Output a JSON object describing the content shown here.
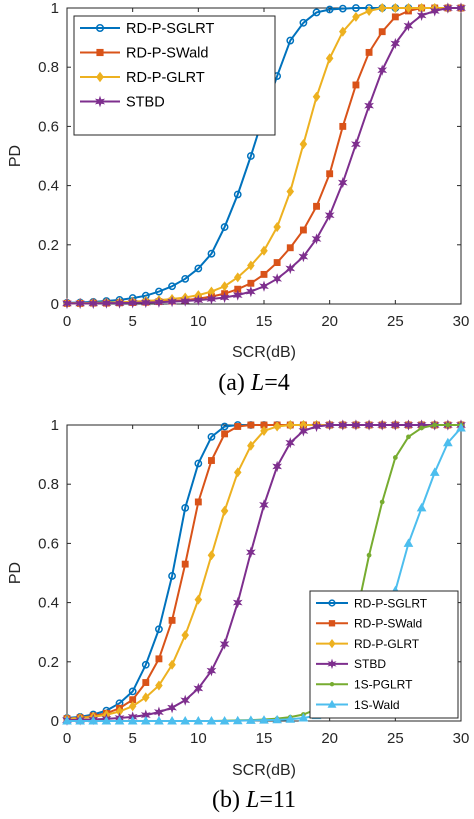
{
  "chart_data": [
    {
      "type": "line",
      "caption": {
        "prefix": "(a) ",
        "var": "L",
        "suffix": "=4"
      },
      "xlabel": "SCR(dB)",
      "ylabel": "PD",
      "xlim": [
        0,
        30
      ],
      "ylim": [
        0,
        1
      ],
      "xticks": [
        "0",
        "5",
        "10",
        "15",
        "20",
        "25",
        "30"
      ],
      "yticks": [
        "0",
        "0.2",
        "0.4",
        "0.6",
        "0.8",
        "1"
      ],
      "grid": false,
      "legend_position": "top-left",
      "x": [
        0,
        1,
        2,
        3,
        4,
        5,
        6,
        7,
        8,
        9,
        10,
        11,
        12,
        13,
        14,
        15,
        16,
        17,
        18,
        19,
        20,
        21,
        22,
        23,
        24,
        25,
        26,
        27,
        28,
        29,
        30
      ],
      "series": [
        {
          "name": "RD-P-SGLRT",
          "color": "#0072BD",
          "marker": "circle",
          "values": [
            0.004,
            0.005,
            0.007,
            0.01,
            0.014,
            0.02,
            0.028,
            0.042,
            0.06,
            0.085,
            0.12,
            0.17,
            0.26,
            0.37,
            0.5,
            0.64,
            0.77,
            0.89,
            0.95,
            0.985,
            0.995,
            0.998,
            1,
            1,
            1,
            1,
            1,
            1,
            1,
            1,
            1
          ]
        },
        {
          "name": "RD-P-SWald",
          "color": "#D95319",
          "marker": "square",
          "values": [
            0.002,
            0.002,
            0.003,
            0.003,
            0.004,
            0.005,
            0.006,
            0.008,
            0.01,
            0.013,
            0.018,
            0.025,
            0.035,
            0.05,
            0.07,
            0.1,
            0.14,
            0.19,
            0.25,
            0.33,
            0.44,
            0.6,
            0.74,
            0.85,
            0.92,
            0.97,
            0.99,
            1,
            1,
            1,
            1
          ]
        },
        {
          "name": "RD-P-GLRT",
          "color": "#EDB120",
          "marker": "diamond",
          "values": [
            0.003,
            0.003,
            0.004,
            0.005,
            0.006,
            0.008,
            0.01,
            0.013,
            0.017,
            0.022,
            0.03,
            0.042,
            0.06,
            0.09,
            0.13,
            0.18,
            0.26,
            0.38,
            0.54,
            0.7,
            0.83,
            0.92,
            0.97,
            0.99,
            1,
            1,
            1,
            1,
            1,
            1,
            1
          ]
        },
        {
          "name": "STBD",
          "color": "#7E2F8E",
          "marker": "star",
          "values": [
            0.002,
            0.002,
            0.002,
            0.003,
            0.003,
            0.004,
            0.005,
            0.006,
            0.008,
            0.01,
            0.013,
            0.017,
            0.022,
            0.03,
            0.042,
            0.06,
            0.085,
            0.12,
            0.16,
            0.22,
            0.3,
            0.41,
            0.54,
            0.67,
            0.79,
            0.88,
            0.94,
            0.975,
            0.99,
            1,
            1
          ]
        }
      ]
    },
    {
      "type": "line",
      "caption": {
        "prefix": "(b) ",
        "var": "L",
        "suffix": "=11"
      },
      "xlabel": "SCR(dB)",
      "ylabel": "PD",
      "xlim": [
        0,
        30
      ],
      "ylim": [
        0,
        1
      ],
      "xticks": [
        "0",
        "5",
        "10",
        "15",
        "20",
        "25",
        "30"
      ],
      "yticks": [
        "0",
        "0.2",
        "0.4",
        "0.6",
        "0.8",
        "1"
      ],
      "grid": false,
      "legend_position": "bottom-right",
      "x": [
        0,
        1,
        2,
        3,
        4,
        5,
        6,
        7,
        8,
        9,
        10,
        11,
        12,
        13,
        14,
        15,
        16,
        17,
        18,
        19,
        20,
        21,
        22,
        23,
        24,
        25,
        26,
        27,
        28,
        29,
        30
      ],
      "series": [
        {
          "name": "RD-P-SGLRT",
          "color": "#0072BD",
          "marker": "circle",
          "values": [
            0.01,
            0.014,
            0.022,
            0.035,
            0.06,
            0.1,
            0.19,
            0.31,
            0.49,
            0.72,
            0.87,
            0.96,
            0.995,
            1,
            1,
            1,
            1,
            1,
            1,
            1,
            1,
            1,
            1,
            1,
            1,
            1,
            1,
            1,
            1,
            1,
            1
          ]
        },
        {
          "name": "RD-P-SWald",
          "color": "#D95319",
          "marker": "square",
          "values": [
            0.008,
            0.011,
            0.017,
            0.026,
            0.043,
            0.072,
            0.13,
            0.21,
            0.34,
            0.53,
            0.74,
            0.88,
            0.97,
            0.995,
            1,
            1,
            1,
            1,
            1,
            1,
            1,
            1,
            1,
            1,
            1,
            1,
            1,
            1,
            1,
            1,
            1
          ]
        },
        {
          "name": "RD-P-GLRT",
          "color": "#EDB120",
          "marker": "diamond",
          "values": [
            0.007,
            0.01,
            0.014,
            0.021,
            0.032,
            0.05,
            0.08,
            0.12,
            0.19,
            0.29,
            0.41,
            0.56,
            0.71,
            0.84,
            0.93,
            0.98,
            0.995,
            1,
            1,
            1,
            1,
            1,
            1,
            1,
            1,
            1,
            1,
            1,
            1,
            1,
            1
          ]
        },
        {
          "name": "STBD",
          "color": "#7E2F8E",
          "marker": "star",
          "values": [
            0.003,
            0.004,
            0.005,
            0.007,
            0.01,
            0.014,
            0.02,
            0.03,
            0.045,
            0.07,
            0.11,
            0.17,
            0.26,
            0.4,
            0.57,
            0.73,
            0.86,
            0.94,
            0.98,
            0.995,
            1,
            1,
            1,
            1,
            1,
            1,
            1,
            1,
            1,
            1,
            1
          ]
        },
        {
          "name": "1S-PGLRT",
          "color": "#77AC30",
          "marker": "dot",
          "values": [
            0,
            0,
            0,
            0,
            0,
            0,
            0,
            0,
            0,
            0,
            0,
            0,
            0.001,
            0.002,
            0.003,
            0.005,
            0.008,
            0.013,
            0.022,
            0.04,
            0.08,
            0.17,
            0.35,
            0.56,
            0.74,
            0.89,
            0.96,
            0.99,
            1,
            1,
            1
          ]
        },
        {
          "name": "1S-Wald",
          "color": "#4DBEEE",
          "marker": "triangle",
          "values": [
            0,
            0,
            0,
            0,
            0,
            0,
            0,
            0,
            0,
            0,
            0,
            0,
            0,
            0.001,
            0.002,
            0.003,
            0.004,
            0.006,
            0.01,
            0.018,
            0.03,
            0.05,
            0.08,
            0.14,
            0.25,
            0.44,
            0.6,
            0.72,
            0.84,
            0.94,
            0.99
          ]
        }
      ]
    }
  ]
}
